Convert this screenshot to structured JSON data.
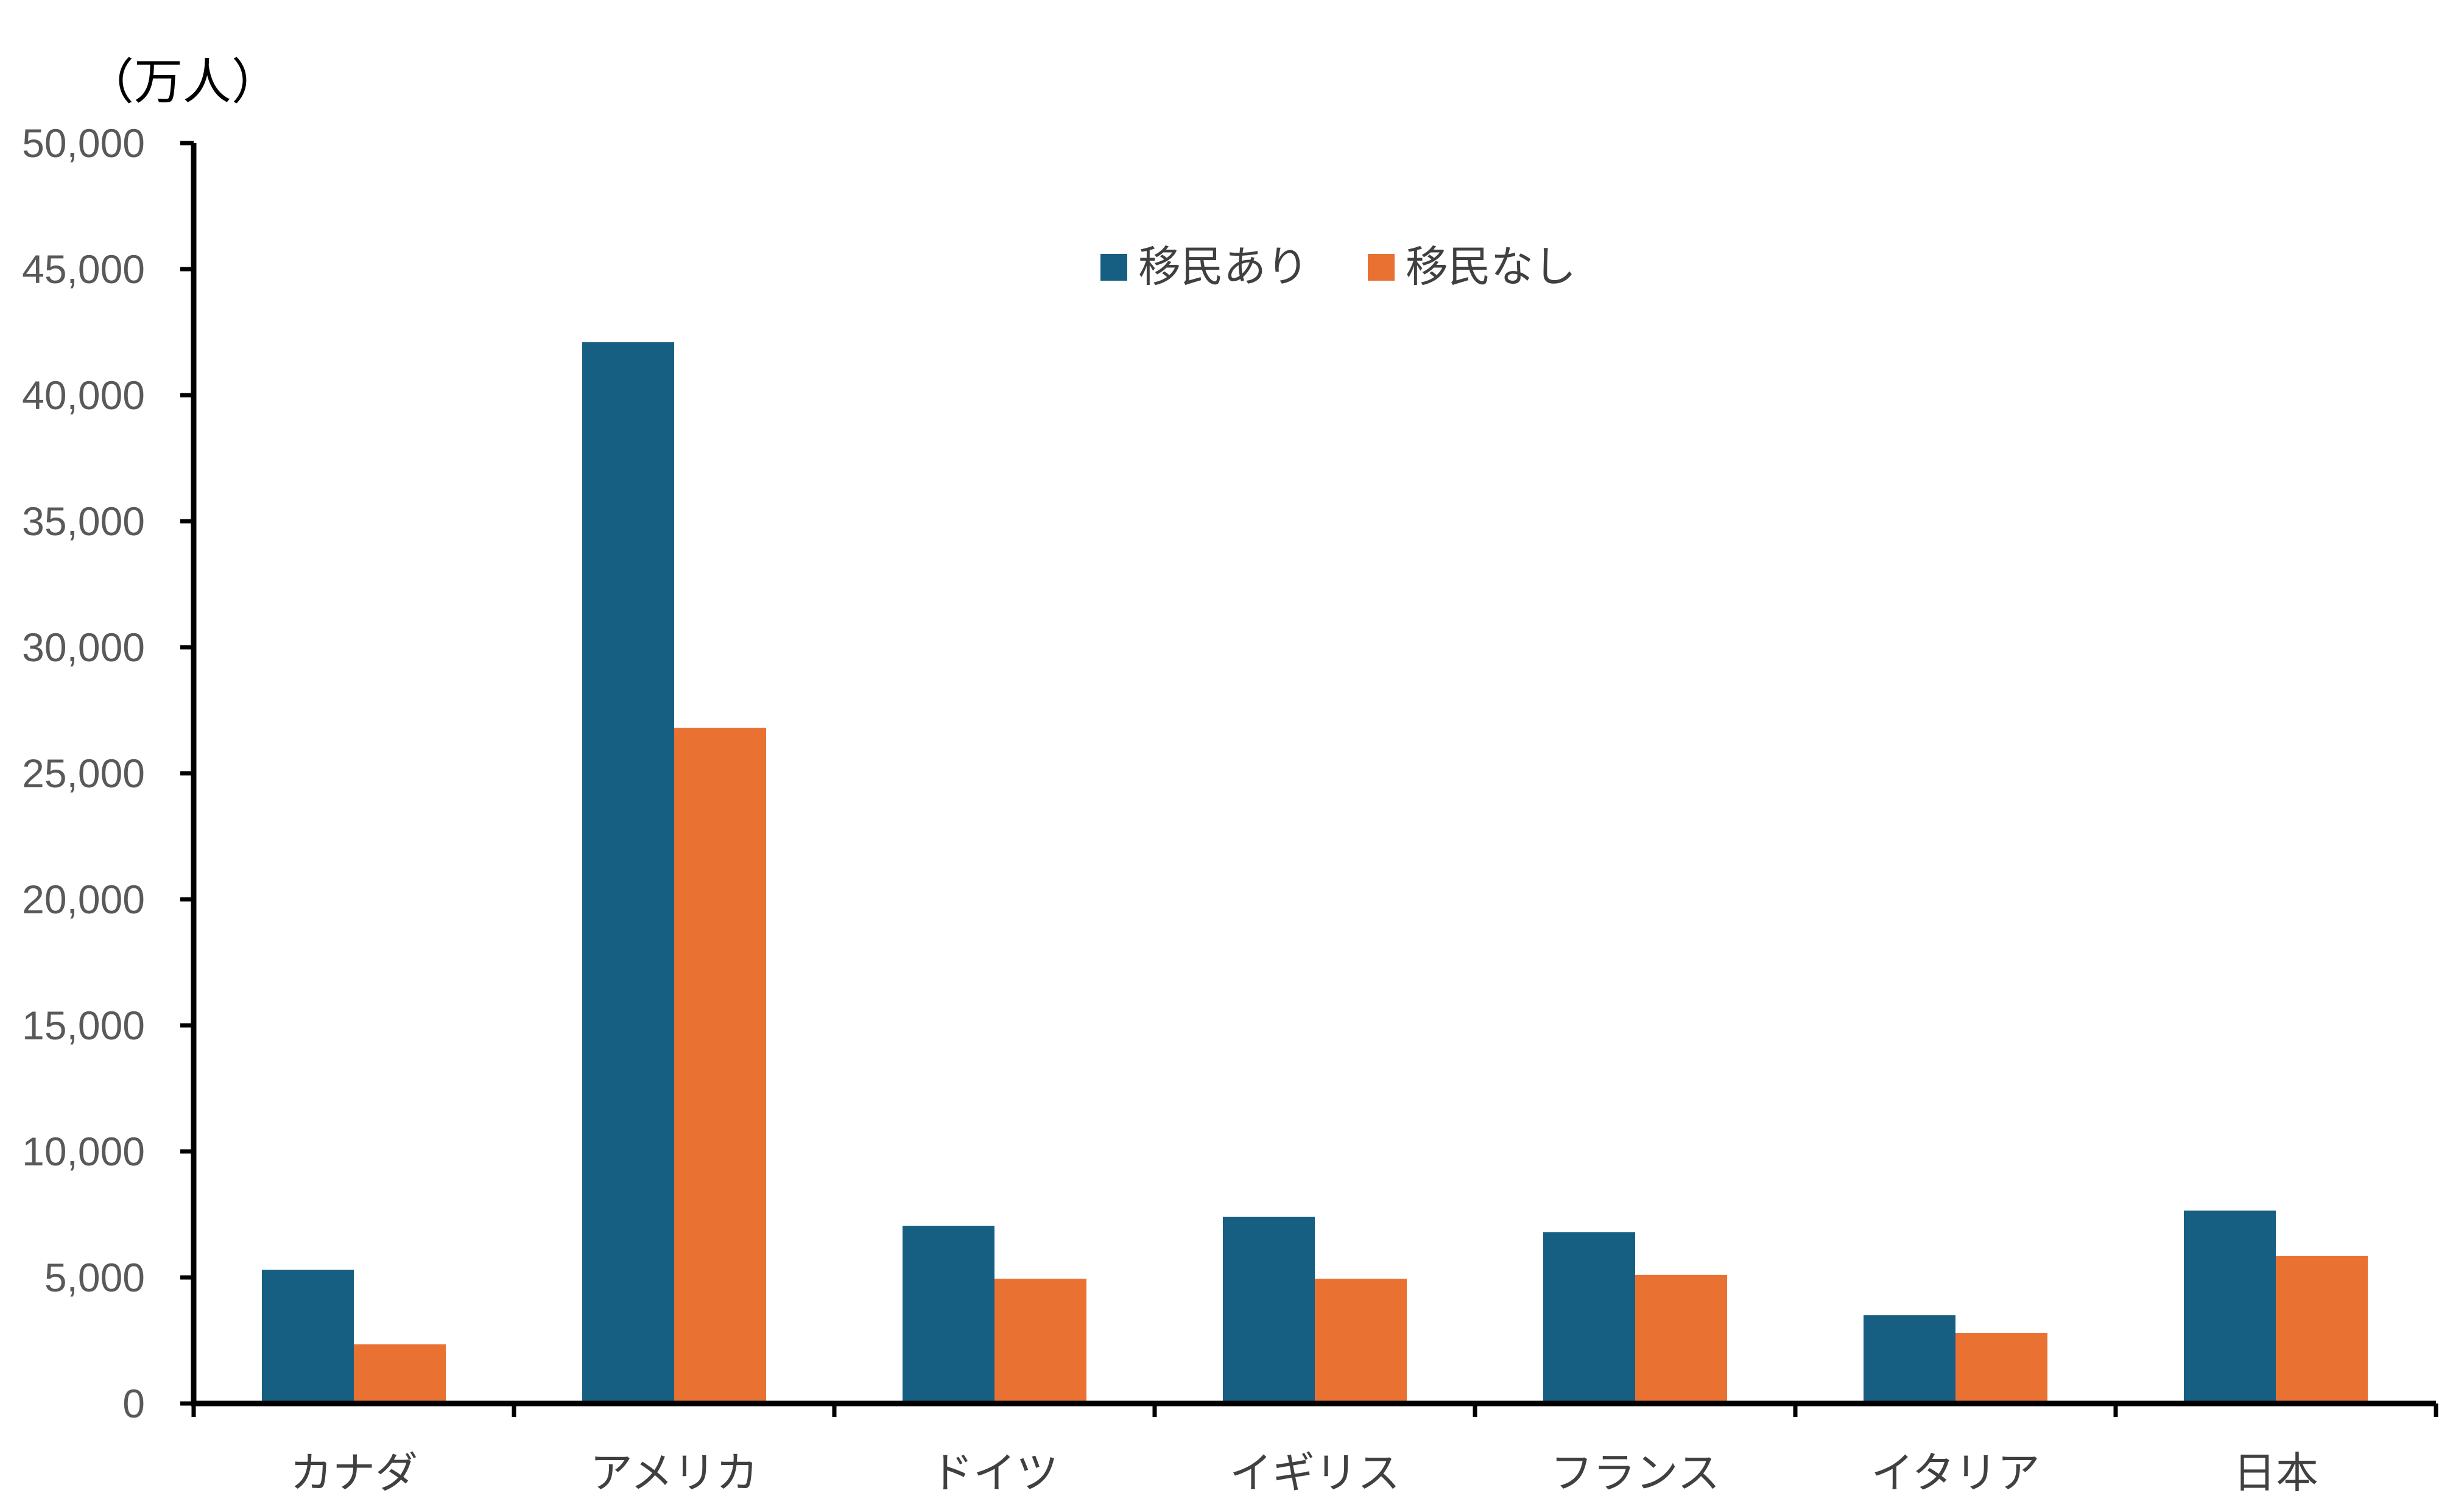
{
  "chart_data": {
    "type": "bar",
    "unit_label": "（万人）",
    "categories": [
      "カナダ",
      "アメリカ",
      "ドイツ",
      "イギリス",
      "フランス",
      "イタリア",
      "日本"
    ],
    "series": [
      {
        "name": "移民あり",
        "color": "#175F82",
        "values": [
          5300,
          42100,
          7050,
          7400,
          6800,
          3500,
          7650
        ]
      },
      {
        "name": "移民なし",
        "color": "#E97132",
        "values": [
          2350,
          26800,
          4950,
          4950,
          5100,
          2800,
          5850
        ]
      }
    ],
    "ylim": [
      0,
      50000
    ],
    "yticks": [
      0,
      5000,
      10000,
      15000,
      20000,
      25000,
      30000,
      35000,
      40000,
      45000,
      50000
    ],
    "ytick_labels": [
      "0",
      "5,000",
      "10,000",
      "15,000",
      "20,000",
      "25,000",
      "30,000",
      "35,000",
      "40,000",
      "45,000",
      "50,000"
    ],
    "legend_position": "top-center",
    "grid": false
  }
}
